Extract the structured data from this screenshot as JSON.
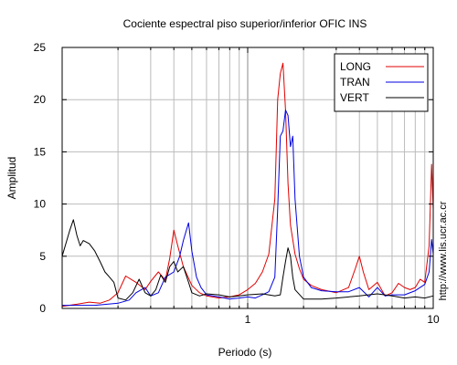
{
  "chart_data": {
    "type": "line",
    "title": "Cociente espectral piso superior/inferior  OFIC INS",
    "xlabel": "Periodo (s)",
    "ylabel": "Amplitud",
    "xscale": "log",
    "xlim": [
      0.1,
      10
    ],
    "ylim": [
      0,
      25
    ],
    "yticks": [
      0,
      5,
      10,
      15,
      20,
      25
    ],
    "xticks": [
      {
        "value": 1,
        "label": "1"
      },
      {
        "value": 10,
        "label": "10"
      }
    ],
    "grid": true,
    "legend_position": "top-right",
    "annotation": "http://www.lis.ucr.ac.cr",
    "series": [
      {
        "name": "LONG",
        "color": "#e00000",
        "x": [
          0.1,
          0.12,
          0.14,
          0.16,
          0.18,
          0.2,
          0.22,
          0.25,
          0.28,
          0.3,
          0.33,
          0.36,
          0.38,
          0.4,
          0.42,
          0.45,
          0.5,
          0.55,
          0.6,
          0.7,
          0.8,
          0.9,
          1.0,
          1.1,
          1.2,
          1.3,
          1.4,
          1.45,
          1.5,
          1.55,
          1.6,
          1.65,
          1.7,
          1.8,
          1.9,
          2.0,
          2.2,
          2.5,
          3.0,
          3.5,
          3.8,
          4.0,
          4.2,
          4.5,
          5.0,
          5.5,
          6.0,
          6.5,
          7.0,
          7.5,
          8.0,
          8.5,
          9.0,
          9.5,
          9.8,
          10.0
        ],
        "y": [
          0.2,
          0.4,
          0.6,
          0.5,
          0.8,
          1.5,
          3.1,
          2.5,
          1.8,
          2.6,
          3.5,
          2.7,
          4.8,
          7.5,
          6.0,
          4.0,
          2.2,
          1.5,
          1.2,
          1.0,
          1.1,
          1.3,
          1.8,
          2.4,
          3.5,
          5.2,
          10.5,
          20.0,
          22.5,
          23.5,
          19.0,
          12.0,
          8.0,
          5.2,
          3.8,
          2.8,
          2.2,
          1.8,
          1.5,
          2.0,
          3.8,
          5.0,
          3.5,
          1.8,
          2.5,
          1.2,
          1.5,
          2.4,
          2.0,
          1.8,
          2.0,
          2.8,
          2.5,
          6.0,
          13.8,
          9.5
        ]
      },
      {
        "name": "TRAN",
        "color": "#0000e0",
        "x": [
          0.1,
          0.15,
          0.2,
          0.23,
          0.25,
          0.28,
          0.3,
          0.33,
          0.36,
          0.4,
          0.43,
          0.45,
          0.48,
          0.5,
          0.53,
          0.56,
          0.6,
          0.7,
          0.8,
          0.9,
          1.0,
          1.1,
          1.2,
          1.3,
          1.4,
          1.45,
          1.5,
          1.55,
          1.6,
          1.65,
          1.7,
          1.75,
          1.8,
          1.9,
          2.0,
          2.2,
          2.5,
          3.0,
          3.5,
          4.0,
          4.5,
          5.0,
          5.5,
          6.0,
          7.0,
          8.0,
          9.0,
          9.5,
          9.8,
          10.0
        ],
        "y": [
          0.3,
          0.3,
          0.5,
          0.8,
          1.5,
          2.0,
          1.2,
          1.5,
          3.0,
          3.5,
          5.0,
          6.5,
          8.2,
          5.5,
          3.0,
          2.0,
          1.3,
          1.1,
          0.9,
          1.0,
          1.1,
          1.0,
          1.3,
          1.6,
          3.0,
          9.5,
          16.5,
          17.0,
          19.0,
          18.5,
          15.5,
          16.5,
          10.5,
          5.0,
          3.0,
          2.0,
          1.7,
          1.6,
          1.6,
          2.0,
          1.1,
          2.0,
          1.2,
          1.3,
          1.3,
          1.7,
          2.3,
          3.5,
          6.6,
          5.2
        ]
      },
      {
        "name": "VERT",
        "color": "#000000",
        "x": [
          0.1,
          0.11,
          0.115,
          0.12,
          0.125,
          0.13,
          0.14,
          0.15,
          0.16,
          0.17,
          0.18,
          0.19,
          0.2,
          0.22,
          0.24,
          0.26,
          0.28,
          0.3,
          0.32,
          0.34,
          0.36,
          0.38,
          0.4,
          0.42,
          0.45,
          0.48,
          0.5,
          0.55,
          0.6,
          0.7,
          0.8,
          0.9,
          1.0,
          1.2,
          1.4,
          1.5,
          1.55,
          1.6,
          1.65,
          1.7,
          1.75,
          1.8,
          2.0,
          2.5,
          3.0,
          4.0,
          5.0,
          6.0,
          7.0,
          8.0,
          9.0,
          10.0
        ],
        "y": [
          5.0,
          7.5,
          8.5,
          7.0,
          6.0,
          6.5,
          6.2,
          5.5,
          4.5,
          3.5,
          3.0,
          2.5,
          1.0,
          0.8,
          1.5,
          2.8,
          1.5,
          1.2,
          1.8,
          3.2,
          2.5,
          4.0,
          4.5,
          3.5,
          4.0,
          2.5,
          1.5,
          1.2,
          1.4,
          1.3,
          1.1,
          1.2,
          1.3,
          1.4,
          1.2,
          1.3,
          3.0,
          4.5,
          5.8,
          5.0,
          3.0,
          1.8,
          0.9,
          0.9,
          1.0,
          1.2,
          1.4,
          1.2,
          1.0,
          1.1,
          1.0,
          1.2
        ]
      }
    ]
  }
}
